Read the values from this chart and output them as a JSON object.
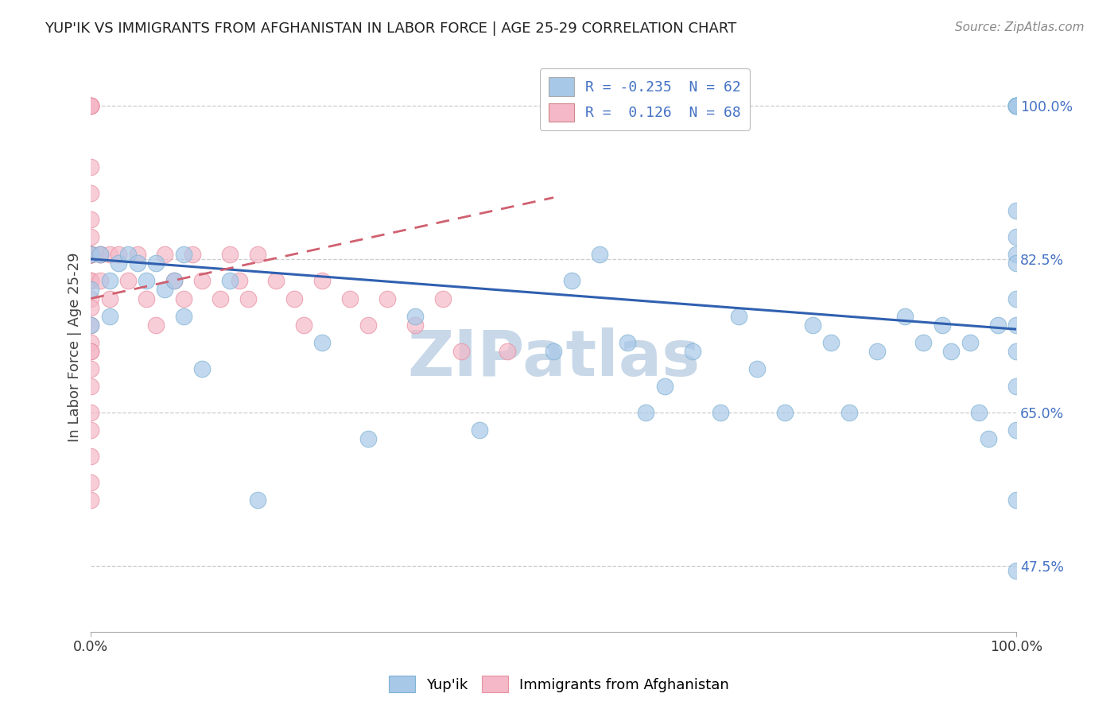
{
  "title": "YUP'IK VS IMMIGRANTS FROM AFGHANISTAN IN LABOR FORCE | AGE 25-29 CORRELATION CHART",
  "source": "Source: ZipAtlas.com",
  "ylabel": "In Labor Force | Age 25-29",
  "xlim": [
    0.0,
    1.0
  ],
  "ylim": [
    0.4,
    1.05
  ],
  "yticks": [
    0.475,
    0.65,
    0.825,
    1.0
  ],
  "ytick_labels": [
    "47.5%",
    "65.0%",
    "82.5%",
    "100.0%"
  ],
  "xtick_labels": [
    "0.0%",
    "100.0%"
  ],
  "xticks": [
    0.0,
    1.0
  ],
  "legend_label_blue": "R = -0.235  N = 62",
  "legend_label_pink": "R =  0.126  N = 68",
  "blue_color": "#a8c8e8",
  "blue_edge_color": "#7fb3d3",
  "pink_color": "#f4b8c8",
  "pink_edge_color": "#e890a0",
  "blue_line_color": "#3060b0",
  "pink_line_color": "#d06070",
  "watermark": "ZIPatlas",
  "watermark_color": "#c8d8e8",
  "R_blue": -0.235,
  "R_pink": 0.126,
  "N_blue": 62,
  "N_pink": 68,
  "blue_x": [
    0.0,
    0.0,
    0.0,
    0.01,
    0.02,
    0.02,
    0.03,
    0.04,
    0.05,
    0.06,
    0.07,
    0.08,
    0.09,
    0.1,
    0.1,
    0.12,
    0.15,
    0.18,
    0.25,
    0.3,
    0.35,
    0.42,
    0.5,
    0.52,
    0.55,
    0.58,
    0.6,
    0.62,
    0.65,
    0.68,
    0.7,
    0.72,
    0.75,
    0.78,
    0.8,
    0.82,
    0.85,
    0.88,
    0.9,
    0.92,
    0.93,
    0.95,
    0.96,
    0.97,
    0.98,
    1.0,
    1.0,
    1.0,
    1.0,
    1.0,
    1.0,
    1.0,
    1.0,
    1.0,
    1.0,
    1.0,
    1.0,
    1.0,
    1.0,
    1.0,
    1.0,
    1.0
  ],
  "blue_y": [
    0.83,
    0.79,
    0.75,
    0.83,
    0.8,
    0.76,
    0.82,
    0.83,
    0.82,
    0.8,
    0.82,
    0.79,
    0.8,
    0.83,
    0.76,
    0.7,
    0.8,
    0.55,
    0.73,
    0.62,
    0.76,
    0.63,
    0.72,
    0.8,
    0.83,
    0.73,
    0.65,
    0.68,
    0.72,
    0.65,
    0.76,
    0.7,
    0.65,
    0.75,
    0.73,
    0.65,
    0.72,
    0.76,
    0.73,
    0.75,
    0.72,
    0.73,
    0.65,
    0.62,
    0.75,
    1.0,
    1.0,
    1.0,
    1.0,
    1.0,
    1.0,
    0.88,
    0.85,
    0.83,
    0.82,
    0.78,
    0.75,
    0.72,
    0.68,
    0.63,
    0.55,
    0.47
  ],
  "pink_x": [
    0.0,
    0.0,
    0.0,
    0.0,
    0.0,
    0.0,
    0.0,
    0.0,
    0.0,
    0.0,
    0.0,
    0.0,
    0.0,
    0.0,
    0.0,
    0.0,
    0.0,
    0.0,
    0.0,
    0.0,
    0.0,
    0.0,
    0.0,
    0.0,
    0.0,
    0.0,
    0.0,
    0.0,
    0.0,
    0.0,
    0.0,
    0.0,
    0.0,
    0.0,
    0.0,
    0.0,
    0.0,
    0.01,
    0.01,
    0.01,
    0.02,
    0.02,
    0.03,
    0.04,
    0.05,
    0.06,
    0.07,
    0.08,
    0.09,
    0.1,
    0.11,
    0.12,
    0.14,
    0.15,
    0.16,
    0.17,
    0.18,
    0.2,
    0.22,
    0.23,
    0.25,
    0.28,
    0.3,
    0.32,
    0.35,
    0.38,
    0.4,
    0.45
  ],
  "pink_y": [
    1.0,
    1.0,
    1.0,
    1.0,
    1.0,
    0.93,
    0.9,
    0.87,
    0.85,
    0.83,
    0.83,
    0.83,
    0.83,
    0.83,
    0.83,
    0.83,
    0.83,
    0.83,
    0.83,
    0.83,
    0.83,
    0.83,
    0.8,
    0.8,
    0.78,
    0.77,
    0.75,
    0.73,
    0.72,
    0.7,
    0.68,
    0.65,
    0.63,
    0.6,
    0.57,
    0.55,
    0.72,
    0.83,
    0.83,
    0.8,
    0.83,
    0.78,
    0.83,
    0.8,
    0.83,
    0.78,
    0.75,
    0.83,
    0.8,
    0.78,
    0.83,
    0.8,
    0.78,
    0.83,
    0.8,
    0.78,
    0.83,
    0.8,
    0.78,
    0.75,
    0.8,
    0.78,
    0.75,
    0.78,
    0.75,
    0.78,
    0.72,
    0.72
  ],
  "blue_trend_x0": 0.0,
  "blue_trend_x1": 1.0,
  "blue_trend_y0": 0.825,
  "blue_trend_y1": 0.745,
  "pink_trend_x0": 0.0,
  "pink_trend_x1": 0.5,
  "pink_trend_y0": 0.78,
  "pink_trend_y1": 0.895
}
